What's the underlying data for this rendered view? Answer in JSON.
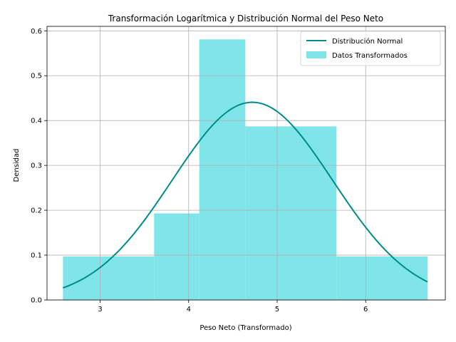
{
  "chart_data": {
    "type": "bar",
    "title": "Transformación Logarítmica y Distribución Normal del Peso Neto",
    "xlabel": "Peso Neto (Transformado)",
    "ylabel": "Densidad",
    "xlim": [
      2.4,
      6.9
    ],
    "ylim": [
      0,
      0.61
    ],
    "xticks": [
      "3",
      "4",
      "5",
      "6"
    ],
    "xtick_values": [
      3,
      4,
      5,
      6
    ],
    "yticks": [
      "0.0",
      "0.1",
      "0.2",
      "0.3",
      "0.4",
      "0.5",
      "0.6"
    ],
    "ytick_values": [
      0.0,
      0.1,
      0.2,
      0.3,
      0.4,
      0.5,
      0.6
    ],
    "grid": true,
    "legend_position": "top-right",
    "series": [
      {
        "name": "Distribución Normal",
        "type": "line",
        "color": "#008b8b",
        "mean": 4.72,
        "std": 0.905,
        "x_range": [
          2.58,
          6.7
        ]
      },
      {
        "name": "Datos Transformados",
        "type": "histogram",
        "color": "#7fe5e8",
        "bins": [
          {
            "x0": 2.58,
            "x1": 3.61,
            "density": 0.097
          },
          {
            "x0": 3.61,
            "x1": 4.12,
            "density": 0.193
          },
          {
            "x0": 4.12,
            "x1": 4.64,
            "density": 0.581
          },
          {
            "x0": 4.64,
            "x1": 5.67,
            "density": 0.387
          },
          {
            "x0": 5.67,
            "x1": 6.7,
            "density": 0.097
          }
        ]
      }
    ]
  }
}
